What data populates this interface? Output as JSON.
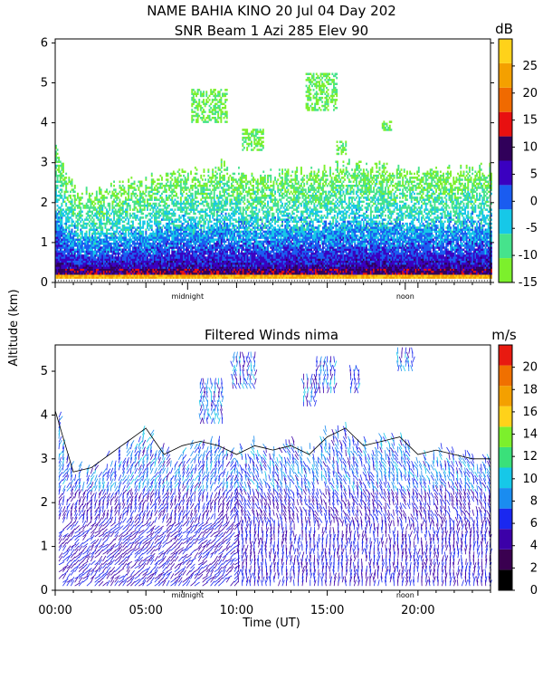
{
  "title_line1": "NAME BAHIA KINO  20 Jul 04 Day 202",
  "title_line2": "SNR Beam 1 Azi 285 Elev 90",
  "ylabel": "Altitude (km)",
  "xlabel": "Time (UT)",
  "chart_data": [
    {
      "type": "heatmap",
      "panel": "snr",
      "title": "SNR Beam 1 Azi 285 Elev 90",
      "colorbar_unit": "dB",
      "colorbar_ticks": [
        25,
        20,
        15,
        10,
        5,
        0,
        -5,
        -10,
        -15
      ],
      "colorbar_range": [
        -15,
        30
      ],
      "colorbar_colors": [
        "#7cf02c",
        "#46e38c",
        "#16c8e8",
        "#1a5cf0",
        "#3a00c0",
        "#30005a",
        "#e81010",
        "#f06a00",
        "#f4a000",
        "#ffd21a"
      ],
      "yticks": [
        0,
        1,
        2,
        3,
        4,
        5,
        6
      ],
      "ylim": [
        0,
        6.1
      ],
      "xlim": [
        0,
        24
      ],
      "time_markers": [
        "midnight",
        "noon"
      ],
      "time_marker_hours": [
        7.3,
        19.3
      ],
      "echo_top_km": [
        3.4,
        2.3,
        2.2,
        2.3,
        2.4,
        2.5,
        2.6,
        2.8,
        2.7,
        2.9,
        2.7,
        2.6,
        2.7,
        2.8,
        2.7,
        2.8,
        2.9,
        2.9,
        2.8,
        2.8,
        2.7,
        2.8,
        2.7,
        2.8
      ],
      "echo_patches": [
        {
          "hour_range": [
            7.5,
            9.5
          ],
          "alt_range": [
            4.0,
            4.8
          ]
        },
        {
          "hour_range": [
            10.3,
            11.5
          ],
          "alt_range": [
            3.3,
            3.8
          ]
        },
        {
          "hour_range": [
            13.8,
            15.5
          ],
          "alt_range": [
            4.3,
            5.2
          ]
        },
        {
          "hour_range": [
            15.5,
            16.0
          ],
          "alt_range": [
            3.2,
            3.5
          ]
        },
        {
          "hour_range": [
            18.0,
            18.5
          ],
          "alt_range": [
            3.8,
            4.0
          ]
        }
      ]
    },
    {
      "type": "wind_barbs",
      "panel": "winds",
      "title": "Filtered Winds nima",
      "colorbar_unit": "m/s",
      "colorbar_ticks": [
        20,
        18,
        16,
        14,
        12,
        10,
        8,
        6,
        4,
        2,
        0
      ],
      "colorbar_range": [
        0,
        22
      ],
      "colorbar_colors": [
        "#000000",
        "#3a0050",
        "#3c00a8",
        "#1a28f0",
        "#1a8cf0",
        "#16c8e8",
        "#3ae07a",
        "#7cf02c",
        "#ffd21a",
        "#f4a000",
        "#f07000",
        "#e81a10"
      ],
      "yticks": [
        0,
        1,
        2,
        3,
        4,
        5
      ],
      "ylim": [
        0,
        5.6
      ],
      "xlim": [
        0,
        24
      ],
      "xticks": [
        "00:00",
        "05:00",
        "10:00",
        "15:00",
        "20:00"
      ],
      "xtick_hours": [
        0,
        5,
        10,
        15,
        20
      ],
      "time_markers": [
        "midnight",
        "noon"
      ],
      "time_marker_hours": [
        7.3,
        19.3
      ],
      "wind_top_km": [
        4.0,
        2.6,
        2.7,
        3.0,
        3.3,
        3.6,
        3.0,
        3.2,
        3.3,
        3.2,
        3.0,
        3.2,
        3.1,
        3.2,
        3.0,
        3.4,
        3.6,
        3.2,
        3.3,
        3.4,
        3.0,
        3.1,
        3.0,
        2.9
      ]
    }
  ]
}
